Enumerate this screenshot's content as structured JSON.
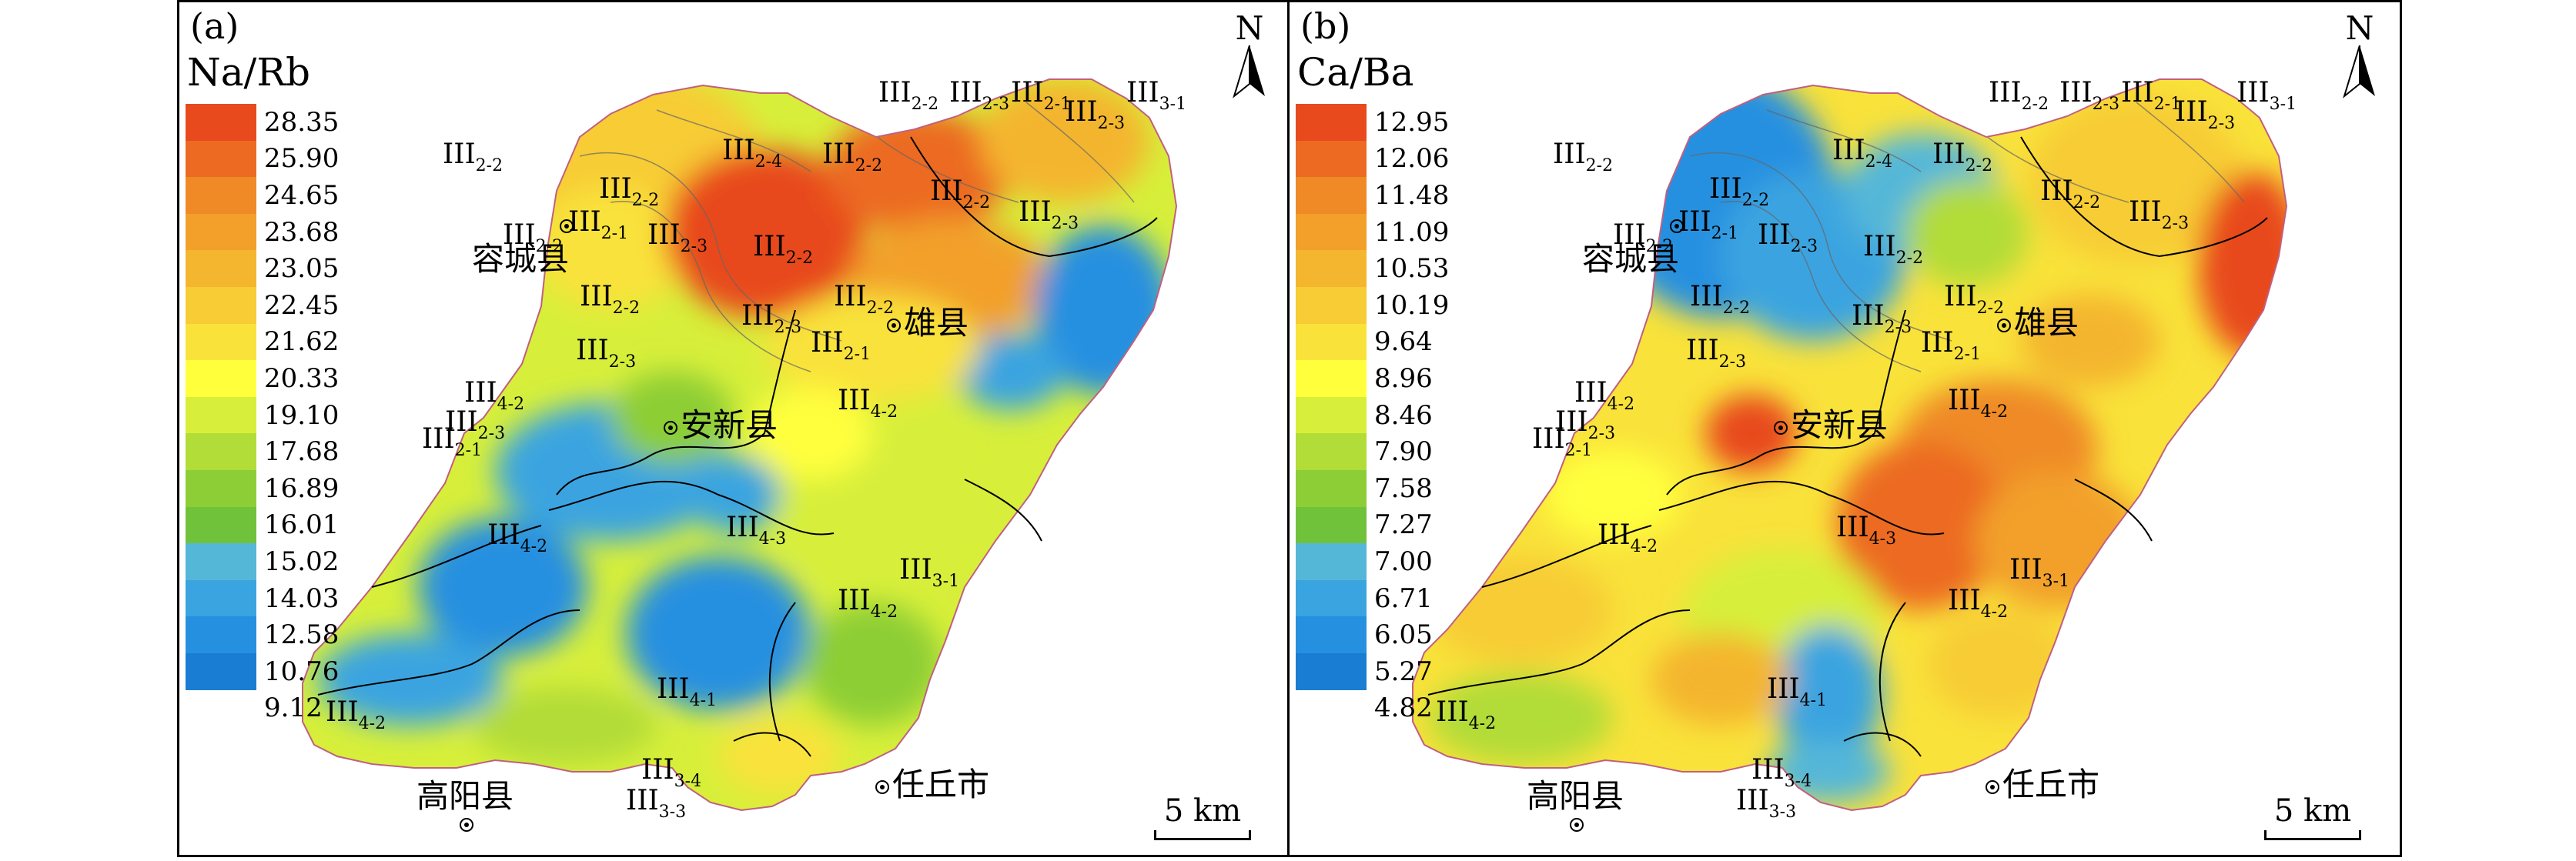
{
  "colors": {
    "legend_a": [
      "#e84a1e",
      "#ec6a22",
      "#ef8a26",
      "#f2a02a",
      "#f4b52f",
      "#f7cc34",
      "#f9e23a",
      "#ffff3c",
      "#d7ef3a",
      "#b2dc38",
      "#8dce36",
      "#70c23a",
      "#55b7d8",
      "#3aa4e0",
      "#2590e0",
      "#1a7dd4"
    ],
    "legend_b": [
      "#e84a1e",
      "#ec6a22",
      "#ef8a26",
      "#f2a02a",
      "#f4b52f",
      "#f7cc34",
      "#f9e23a",
      "#ffff3c",
      "#d7ef3a",
      "#b2dc38",
      "#8dce36",
      "#70c23a",
      "#55b7d8",
      "#3aa4e0",
      "#2590e0",
      "#1a7dd4"
    ]
  },
  "panels": [
    {
      "label": "(a)",
      "legend_title": "Na/Rb",
      "legend_values": [
        "28.35",
        "25.90",
        "24.65",
        "23.68",
        "23.05",
        "22.45",
        "21.62",
        "20.33",
        "19.10",
        "17.68",
        "16.89",
        "16.01",
        "15.02",
        "14.03",
        "12.58",
        "10.76",
        "9.12"
      ],
      "north": "N",
      "scale": "5 km",
      "towns": [
        "容城县",
        "雄县",
        "安新县",
        "高阳县",
        "任丘市"
      ],
      "codes": [
        {
          "main": "III",
          "sub": "2-2"
        },
        {
          "main": "III",
          "sub": "2-3"
        },
        {
          "main": "III",
          "sub": "2-1"
        },
        {
          "main": "III",
          "sub": "2-3"
        },
        {
          "main": "III",
          "sub": "3-1"
        },
        {
          "main": "III",
          "sub": "2-4"
        },
        {
          "main": "III",
          "sub": "2-2"
        },
        {
          "main": "III",
          "sub": "2-2"
        },
        {
          "main": "III",
          "sub": "2-2"
        },
        {
          "main": "III",
          "sub": "2-3"
        },
        {
          "main": "III",
          "sub": "2-2"
        },
        {
          "main": "III",
          "sub": "2-1"
        },
        {
          "main": "III",
          "sub": "2-3"
        },
        {
          "main": "III",
          "sub": "2-2"
        },
        {
          "main": "III",
          "sub": "2-2"
        },
        {
          "main": "III",
          "sub": "2-2"
        },
        {
          "main": "III",
          "sub": "2-3"
        },
        {
          "main": "III",
          "sub": "2-3"
        },
        {
          "main": "III",
          "sub": "2-1"
        },
        {
          "main": "III",
          "sub": "2-2"
        },
        {
          "main": "III",
          "sub": "4-2"
        },
        {
          "main": "III",
          "sub": "4-2"
        },
        {
          "main": "III",
          "sub": "2-3"
        },
        {
          "main": "III",
          "sub": "2-1"
        },
        {
          "main": "III",
          "sub": "4-2"
        },
        {
          "main": "III",
          "sub": "4-3"
        },
        {
          "main": "III",
          "sub": "3-1"
        },
        {
          "main": "III",
          "sub": "4-2"
        },
        {
          "main": "III",
          "sub": "4-1"
        },
        {
          "main": "III",
          "sub": "4-2"
        },
        {
          "main": "III",
          "sub": "3-4"
        },
        {
          "main": "III",
          "sub": "3-3"
        }
      ]
    },
    {
      "label": "(b)",
      "legend_title": "Ca/Ba",
      "legend_values": [
        "12.95",
        "12.06",
        "11.48",
        "11.09",
        "10.53",
        "10.19",
        "9.64",
        "8.96",
        "8.46",
        "7.90",
        "7.58",
        "7.27",
        "7.00",
        "6.71",
        "6.05",
        "5.27",
        "4.82"
      ],
      "north": "N",
      "scale": "5 km",
      "towns": [
        "容城县",
        "雄县",
        "安新县",
        "高阳县",
        "任丘市"
      ],
      "codes": [
        {
          "main": "III",
          "sub": "2-2"
        },
        {
          "main": "III",
          "sub": "2-3"
        },
        {
          "main": "III",
          "sub": "2-1"
        },
        {
          "main": "III",
          "sub": "2-3"
        },
        {
          "main": "III",
          "sub": "3-1"
        },
        {
          "main": "III",
          "sub": "2-4"
        },
        {
          "main": "III",
          "sub": "2-2"
        },
        {
          "main": "III",
          "sub": "2-2"
        },
        {
          "main": "III",
          "sub": "2-2"
        },
        {
          "main": "III",
          "sub": "2-3"
        },
        {
          "main": "III",
          "sub": "2-2"
        },
        {
          "main": "III",
          "sub": "2-1"
        },
        {
          "main": "III",
          "sub": "2-3"
        },
        {
          "main": "III",
          "sub": "2-2"
        },
        {
          "main": "III",
          "sub": "2-2"
        },
        {
          "main": "III",
          "sub": "2-2"
        },
        {
          "main": "III",
          "sub": "2-3"
        },
        {
          "main": "III",
          "sub": "2-3"
        },
        {
          "main": "III",
          "sub": "2-1"
        },
        {
          "main": "III",
          "sub": "2-2"
        },
        {
          "main": "III",
          "sub": "4-2"
        },
        {
          "main": "III",
          "sub": "4-2"
        },
        {
          "main": "III",
          "sub": "2-3"
        },
        {
          "main": "III",
          "sub": "2-1"
        },
        {
          "main": "III",
          "sub": "4-2"
        },
        {
          "main": "III",
          "sub": "4-3"
        },
        {
          "main": "III",
          "sub": "3-1"
        },
        {
          "main": "III",
          "sub": "4-2"
        },
        {
          "main": "III",
          "sub": "4-1"
        },
        {
          "main": "III",
          "sub": "4-2"
        },
        {
          "main": "III",
          "sub": "3-4"
        },
        {
          "main": "III",
          "sub": "3-3"
        }
      ]
    }
  ]
}
